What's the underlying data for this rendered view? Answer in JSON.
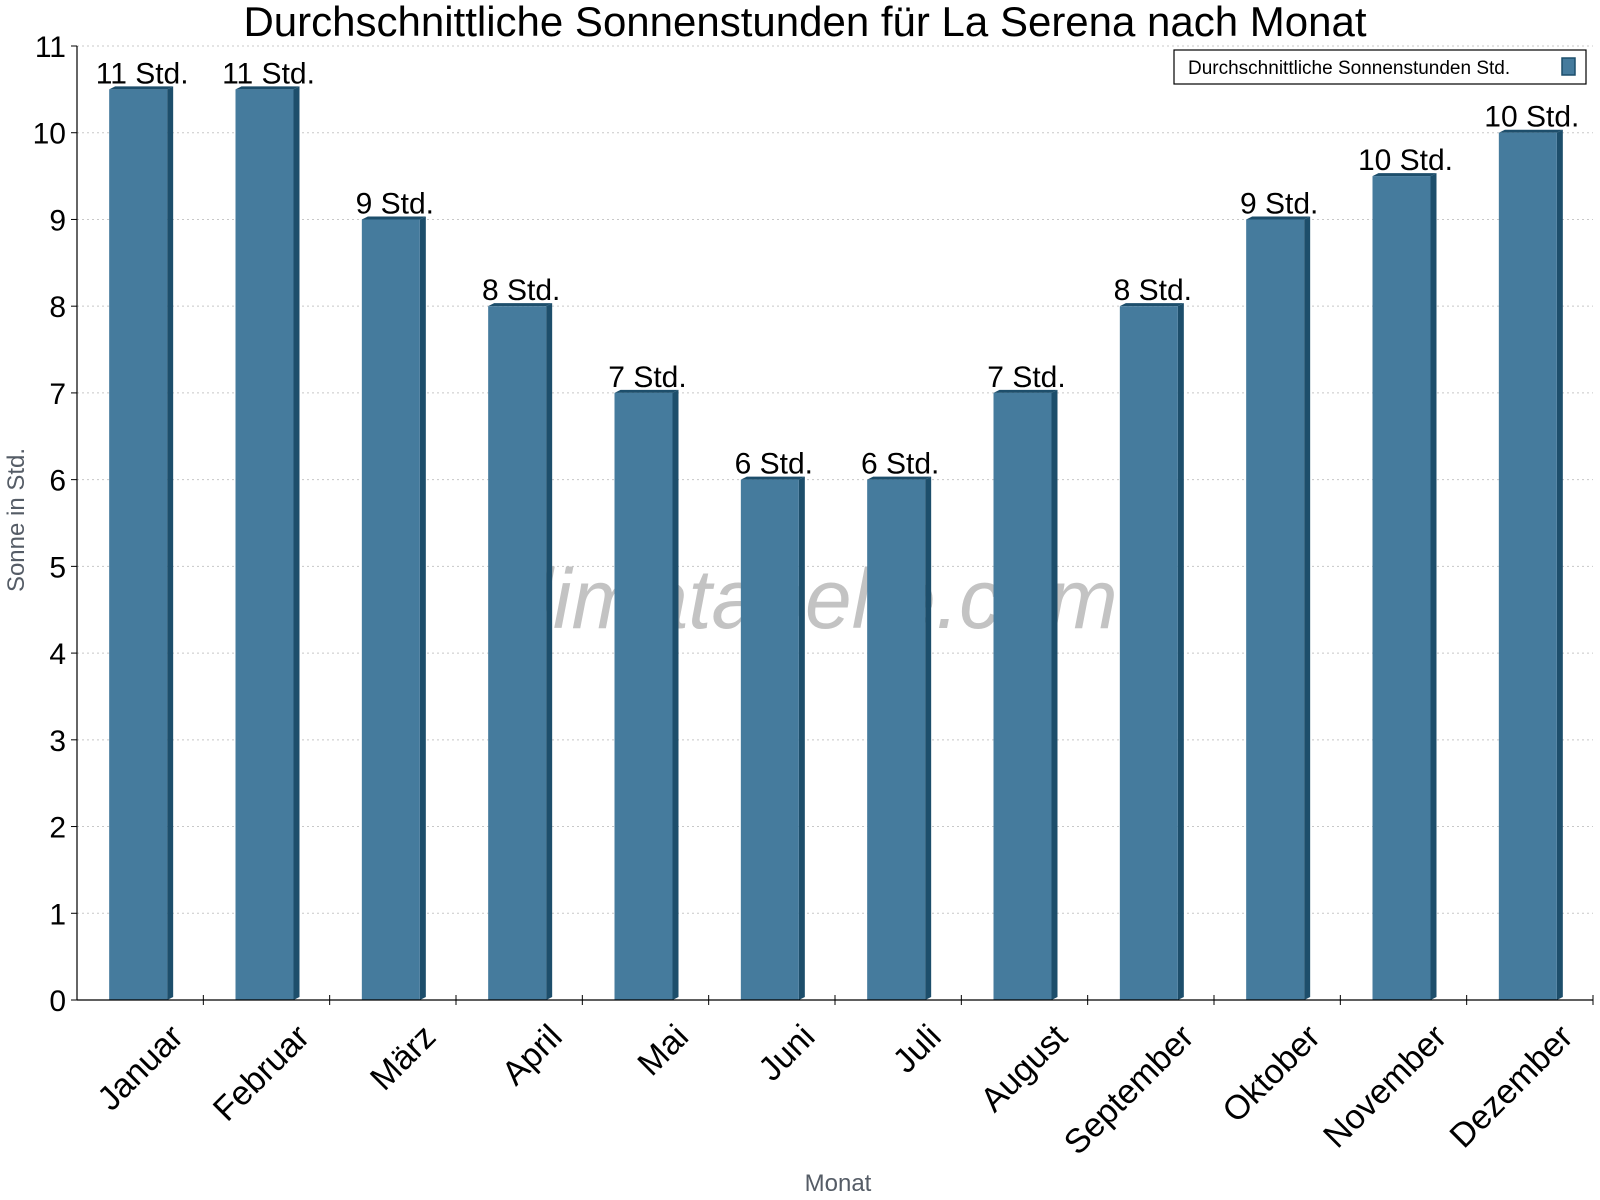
{
  "chart_data": {
    "type": "bar",
    "title": "Durchschnittliche Sonnenstunden für La Serena nach Monat",
    "xlabel": "Monat",
    "ylabel": "Sonne in Std.",
    "ylim": [
      0,
      11
    ],
    "yticks": [
      0,
      1,
      2,
      3,
      4,
      5,
      6,
      7,
      8,
      9,
      10,
      11
    ],
    "grid": true,
    "legend_position": "top-right",
    "categories": [
      "Januar",
      "Februar",
      "März",
      "April",
      "Mai",
      "Juni",
      "Juli",
      "August",
      "September",
      "Oktober",
      "November",
      "Dezember"
    ],
    "series": [
      {
        "name": "Durchschnittliche Sonnenstunden Std.",
        "values": [
          10.5,
          10.5,
          9.0,
          8.0,
          7.0,
          6.0,
          6.0,
          7.0,
          8.0,
          9.0,
          9.5,
          10.0
        ],
        "labels": [
          "11 Std.",
          "11 Std.",
          "9 Std.",
          "8 Std.",
          "7 Std.",
          "6 Std.",
          "6 Std.",
          "7 Std.",
          "8 Std.",
          "9 Std.",
          "10 Std.",
          "10 Std."
        ],
        "color": "#457b9d",
        "side_color": "#1d4e6b"
      }
    ],
    "watermark": "klimatabelle.com"
  }
}
